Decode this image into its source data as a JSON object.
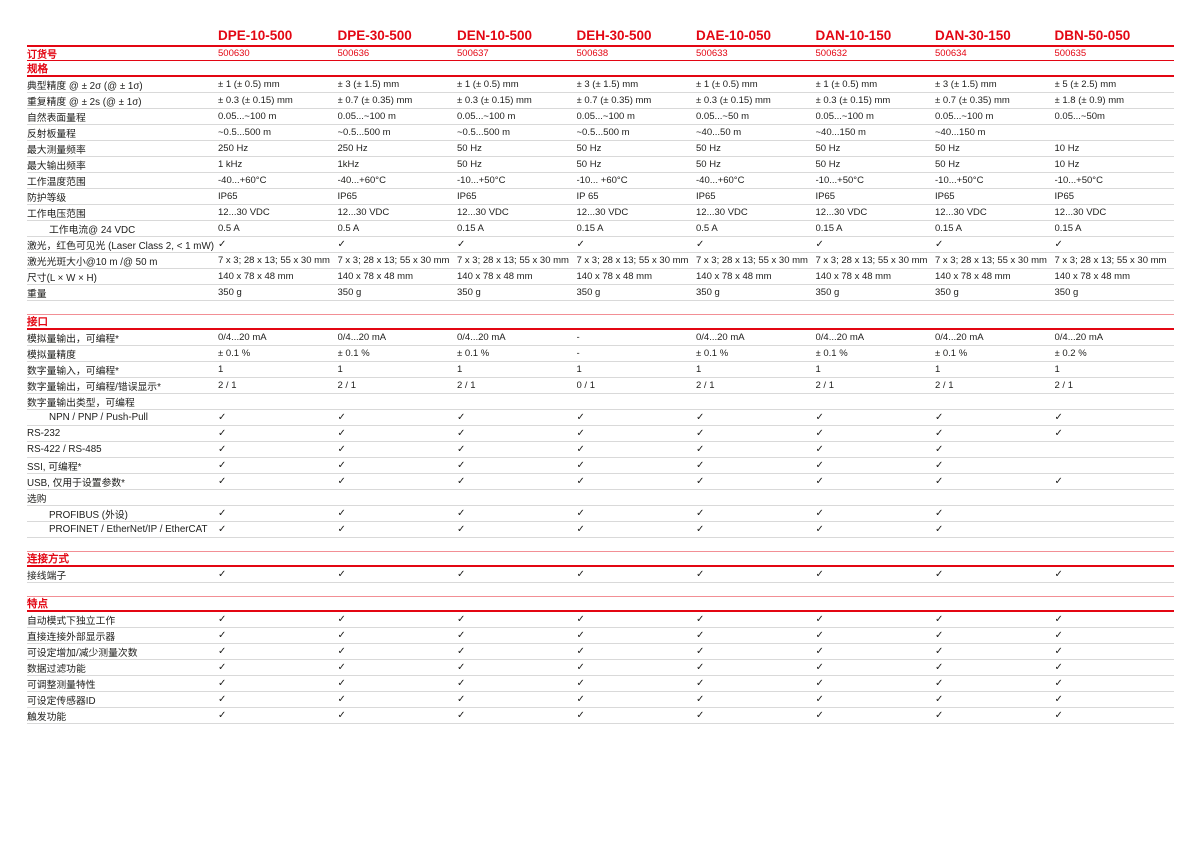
{
  "brand_color": "#e30613",
  "icons": {
    "check": "✓"
  },
  "table": {
    "order_label": "订货号",
    "products": [
      {
        "name": "DPE-10-500",
        "order_no": "500630"
      },
      {
        "name": "DPE-30-500",
        "order_no": "500636"
      },
      {
        "name": "DEN-10-500",
        "order_no": "500637"
      },
      {
        "name": "DEH-30-500",
        "order_no": "500638"
      },
      {
        "name": "DAE-10-050",
        "order_no": "500633"
      },
      {
        "name": "DAN-10-150",
        "order_no": "500632"
      },
      {
        "name": "DAN-30-150",
        "order_no": "500634"
      },
      {
        "name": "DBN-50-050",
        "order_no": "500635"
      }
    ],
    "sections": [
      {
        "title": "规格",
        "rows": [
          {
            "label": "典型精度 @ ± 2σ (@ ± 1σ)",
            "values": [
              "± 1 (± 0.5) mm",
              "± 3 (± 1.5) mm",
              "± 1 (± 0.5) mm",
              "± 3 (± 1.5) mm",
              "± 1 (± 0.5) mm",
              "± 1 (± 0.5) mm",
              "± 3 (± 1.5) mm",
              "± 5 (± 2.5) mm"
            ]
          },
          {
            "label": "重复精度 @ ± 2s (@ ± 1σ)",
            "values": [
              "± 0.3 (± 0.15) mm",
              "± 0.7 (± 0.35) mm",
              "± 0.3 (± 0.15) mm",
              "± 0.7 (± 0.35) mm",
              "± 0.3 (± 0.15) mm",
              "± 0.3 (± 0.15) mm",
              "± 0.7 (± 0.35) mm",
              "± 1.8 (± 0.9) mm"
            ]
          },
          {
            "label": "自然表面量程",
            "values": [
              "0.05...~100 m",
              "0.05...~100 m",
              "0.05...~100 m",
              "0.05...~100 m",
              "0.05...~50 m",
              "0.05...~100 m",
              "0.05...~100 m",
              "0.05...~50m"
            ]
          },
          {
            "label": "反射板量程",
            "values": [
              "~0.5...500 m",
              "~0.5...500 m",
              "~0.5...500 m",
              "~0.5...500 m",
              "~40...50 m",
              "~40...150 m",
              "~40...150 m",
              ""
            ]
          },
          {
            "label": "最大测量频率",
            "values": [
              "250 Hz",
              "250 Hz",
              "50 Hz",
              "50 Hz",
              "50 Hz",
              "50 Hz",
              "50 Hz",
              "10 Hz"
            ]
          },
          {
            "label": "最大输出频率",
            "values": [
              "1 kHz",
              "1kHz",
              "50 Hz",
              "50 Hz",
              "50 Hz",
              "50 Hz",
              "50 Hz",
              "10 Hz"
            ]
          },
          {
            "label": "工作温度范围",
            "values": [
              "-40...+60°C",
              "-40...+60°C",
              "-10...+50°C",
              "-10... +60°C",
              "-40...+60°C",
              "-10...+50°C",
              "-10...+50°C",
              "-10...+50°C"
            ]
          },
          {
            "label": "防护等级",
            "values": [
              "IP65",
              "IP65",
              "IP65",
              "IP 65",
              "IP65",
              "IP65",
              "IP65",
              "IP65"
            ]
          },
          {
            "label": "工作电压范围",
            "values": [
              "12...30 VDC",
              "12...30 VDC",
              "12...30 VDC",
              "12...30 VDC",
              "12...30 VDC",
              "12...30 VDC",
              "12...30 VDC",
              "12...30 VDC"
            ]
          },
          {
            "label": "工作电流@ 24 VDC",
            "indent": true,
            "values": [
              "0.5 A",
              "0.5 A",
              "0.15 A",
              "0.15 A",
              "0.5 A",
              "0.15 A",
              "0.15 A",
              "0.15 A"
            ]
          },
          {
            "label": "激光，红色可见光 (Laser Class 2, < 1 mW)",
            "values": [
              "✓",
              "✓",
              "✓",
              "✓",
              "✓",
              "✓",
              "✓",
              "✓"
            ]
          },
          {
            "label": "激光光斑大小@10 m /@ 50 m",
            "values": [
              "7 x 3; 28 x 13; 55 x 30 mm",
              "7 x 3; 28 x 13; 55 x 30 mm",
              "7 x 3; 28 x 13; 55 x 30 mm",
              "7 x 3; 28 x 13; 55 x 30 mm",
              "7 x 3; 28 x 13; 55 x 30 mm",
              "7 x 3; 28 x 13; 55 x 30 mm",
              "7 x 3; 28 x 13; 55 x 30 mm",
              "7 x 3; 28 x 13; 55 x 30 mm"
            ]
          },
          {
            "label": "尺寸(L × W × H)",
            "values": [
              "140 x 78 x 48 mm",
              "140 x 78 x 48 mm",
              "140 x 78 x 48 mm",
              "140 x 78 x 48 mm",
              "140 x 78 x 48 mm",
              "140 x 78 x 48 mm",
              "140 x 78 x 48 mm",
              "140 x 78 x 48 mm"
            ]
          },
          {
            "label": "重量",
            "values": [
              "350 g",
              "350 g",
              "350 g",
              "350 g",
              "350 g",
              "350 g",
              "350 g",
              "350 g"
            ]
          }
        ]
      },
      {
        "title": "接口",
        "rows": [
          {
            "label": "模拟量输出，可编程*",
            "values": [
              "0/4...20 mA",
              "0/4...20 mA",
              "0/4...20 mA",
              "-",
              "0/4...20 mA",
              "0/4...20 mA",
              "0/4...20 mA",
              "0/4...20 mA"
            ]
          },
          {
            "label": "模拟量精度",
            "values": [
              "± 0.1 %",
              "± 0.1 %",
              "± 0.1 %",
              "-",
              "± 0.1 %",
              "± 0.1 %",
              "± 0.1 %",
              "± 0.2 %"
            ]
          },
          {
            "label": "数字量输入，可编程*",
            "values": [
              "1",
              "1",
              "1",
              "1",
              "1",
              "1",
              "1",
              "1"
            ]
          },
          {
            "label": "数字量输出，可编程/错误显示*",
            "values": [
              "2 / 1",
              "2 / 1",
              "2 / 1",
              "0 / 1",
              "2 / 1",
              "2 / 1",
              "2 / 1",
              "2 / 1"
            ]
          },
          {
            "label": "数字量输出类型，可编程",
            "subheader": true,
            "values": [
              "",
              "",
              "",
              "",
              "",
              "",
              "",
              ""
            ]
          },
          {
            "label": "NPN / PNP / Push-Pull",
            "indent": true,
            "values": [
              "✓",
              "✓",
              "✓",
              "✓",
              "✓",
              "✓",
              "✓",
              "✓"
            ]
          },
          {
            "label": "RS-232",
            "values": [
              "✓",
              "✓",
              "✓",
              "✓",
              "✓",
              "✓",
              "✓",
              "✓"
            ]
          },
          {
            "label": "RS-422 / RS-485",
            "values": [
              "✓",
              "✓",
              "✓",
              "✓",
              "✓",
              "✓",
              "✓",
              ""
            ]
          },
          {
            "label": "SSI, 可编程*",
            "values": [
              "✓",
              "✓",
              "✓",
              "✓",
              "✓",
              "✓",
              "✓",
              ""
            ]
          },
          {
            "label": "USB, 仅用于设置参数*",
            "values": [
              "✓",
              "✓",
              "✓",
              "✓",
              "✓",
              "✓",
              "✓",
              "✓"
            ]
          },
          {
            "label": "选购",
            "subheader": true,
            "values": [
              "",
              "",
              "",
              "",
              "",
              "",
              "",
              ""
            ]
          },
          {
            "label": "PROFIBUS (外设)",
            "indent": true,
            "values": [
              "✓",
              "✓",
              "✓",
              "✓",
              "✓",
              "✓",
              "✓",
              ""
            ]
          },
          {
            "label": "PROFINET / EtherNet/IP / EtherCAT",
            "indent": true,
            "values": [
              "✓",
              "✓",
              "✓",
              "✓",
              "✓",
              "✓",
              "✓",
              ""
            ]
          }
        ]
      },
      {
        "title": "连接方式",
        "rows": [
          {
            "label": "接线端子",
            "values": [
              "✓",
              "✓",
              "✓",
              "✓",
              "✓",
              "✓",
              "✓",
              "✓"
            ]
          }
        ]
      },
      {
        "title": "特点",
        "rows": [
          {
            "label": "自动模式下独立工作",
            "values": [
              "✓",
              "✓",
              "✓",
              "✓",
              "✓",
              "✓",
              "✓",
              "✓"
            ]
          },
          {
            "label": "直接连接外部显示器",
            "values": [
              "✓",
              "✓",
              "✓",
              "✓",
              "✓",
              "✓",
              "✓",
              "✓"
            ]
          },
          {
            "label": "可设定增加/减少测量次数",
            "values": [
              "✓",
              "✓",
              "✓",
              "✓",
              "✓",
              "✓",
              "✓",
              "✓"
            ]
          },
          {
            "label": "数据过滤功能",
            "values": [
              "✓",
              "✓",
              "✓",
              "✓",
              "✓",
              "✓",
              "✓",
              "✓"
            ]
          },
          {
            "label": "可调整测量特性",
            "values": [
              "✓",
              "✓",
              "✓",
              "✓",
              "✓",
              "✓",
              "✓",
              "✓"
            ]
          },
          {
            "label": "可设定传感器ID",
            "values": [
              "✓",
              "✓",
              "✓",
              "✓",
              "✓",
              "✓",
              "✓",
              "✓"
            ]
          },
          {
            "label": "触发功能",
            "values": [
              "✓",
              "✓",
              "✓",
              "✓",
              "✓",
              "✓",
              "✓",
              "✓"
            ]
          }
        ]
      }
    ]
  }
}
